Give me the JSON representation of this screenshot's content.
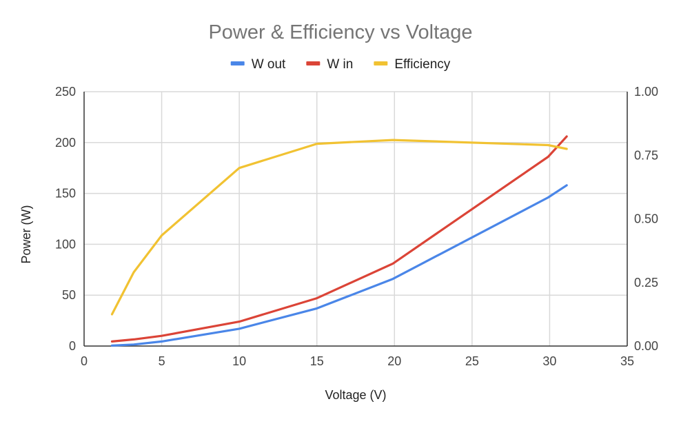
{
  "chart_data": {
    "type": "line",
    "title": "Power & Efficiency vs Voltage",
    "xlabel": "Voltage (V)",
    "ylabel": "Power (W)",
    "y2label": "",
    "xlim": [
      0,
      35
    ],
    "ylim": [
      0,
      250
    ],
    "y2lim": [
      0,
      1
    ],
    "x_ticks": [
      0,
      5,
      10,
      15,
      20,
      25,
      30,
      35
    ],
    "y_ticks": [
      0,
      50,
      100,
      150,
      200,
      250
    ],
    "y2_ticks": [
      "0.00",
      "0.25",
      "0.50",
      "0.75",
      "1.00"
    ],
    "grid": true,
    "legend_position": "top-center",
    "series": [
      {
        "name": "W out",
        "color": "#4a86e8",
        "axis": "left",
        "x": [
          1.8,
          3.2,
          5,
          10,
          15,
          19.9,
          29.9,
          31.1
        ],
        "values": [
          0.5,
          1.5,
          4.5,
          17,
          37,
          66,
          146,
          158
        ]
      },
      {
        "name": "W in",
        "color": "#db4437",
        "axis": "left",
        "x": [
          1.8,
          3.2,
          5,
          10,
          15,
          19.9,
          29.9,
          31.1
        ],
        "values": [
          4.5,
          6.5,
          10,
          24,
          47,
          81,
          186,
          206
        ]
      },
      {
        "name": "Efficiency",
        "color": "#f1c232",
        "axis": "right",
        "x": [
          1.8,
          3.2,
          5,
          10,
          15,
          19.9,
          29.9,
          31.1
        ],
        "values": [
          0.125,
          0.29,
          0.435,
          0.7,
          0.795,
          0.81,
          0.79,
          0.775
        ]
      }
    ]
  }
}
